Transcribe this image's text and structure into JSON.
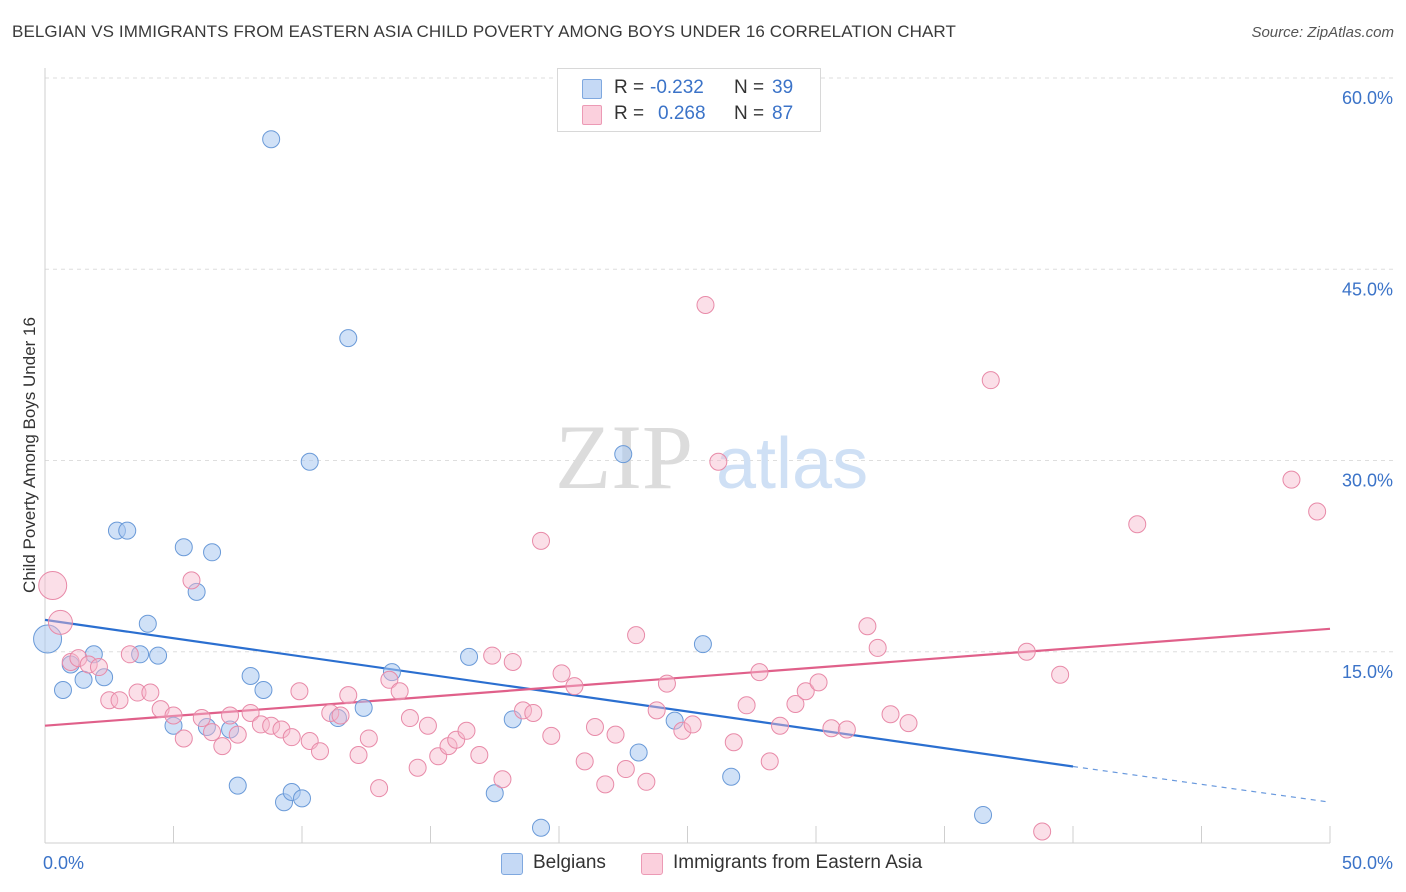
{
  "header": {
    "title": "BELGIAN VS IMMIGRANTS FROM EASTERN ASIA CHILD POVERTY AMONG BOYS UNDER 16 CORRELATION CHART",
    "source": "Source: ZipAtlas.com"
  },
  "watermark": {
    "zip": "ZIP",
    "atlas": "atlas"
  },
  "legend": {
    "rows": [
      {
        "r_label": "R =",
        "r_value": "-0.232",
        "n_label": "N =",
        "n_value": "39",
        "color": "#a9c8f0"
      },
      {
        "r_label": "R =",
        "r_value": "0.268",
        "n_label": "N =",
        "n_value": "87",
        "color": "#f7b9cd"
      }
    ]
  },
  "chart_data": {
    "type": "scatter",
    "ylabel": "Child Poverty Among Boys Under 16",
    "xlim": [
      0,
      50
    ],
    "ylim": [
      0,
      60
    ],
    "x_tick_labels": [
      "0.0%",
      "50.0%"
    ],
    "y_ticks": [
      15,
      30,
      45,
      60
    ],
    "y_tick_labels": [
      "15.0%",
      "30.0%",
      "45.0%",
      "60.0%"
    ],
    "grid": true,
    "legend_position": "bottom",
    "series": [
      {
        "name": "Belgians",
        "color": "#a9c8f0",
        "stroke": "#6a9ad8",
        "trend_color": "#2b6fd0",
        "trend": {
          "x0": 0,
          "y0": 17.5,
          "x1": 40,
          "y1": 6.0,
          "dash_to_x": 50,
          "dash_to_y": 3.2
        },
        "points": [
          [
            0.1,
            16.0
          ],
          [
            0.7,
            12.0
          ],
          [
            1.0,
            14.0
          ],
          [
            1.5,
            12.8
          ],
          [
            1.9,
            14.8
          ],
          [
            2.3,
            13.0
          ],
          [
            2.8,
            24.5
          ],
          [
            3.2,
            24.5
          ],
          [
            3.7,
            14.8
          ],
          [
            4.0,
            17.2
          ],
          [
            4.4,
            14.7
          ],
          [
            5.0,
            9.2
          ],
          [
            5.4,
            23.2
          ],
          [
            5.9,
            19.7
          ],
          [
            6.3,
            9.1
          ],
          [
            6.5,
            22.8
          ],
          [
            7.2,
            8.9
          ],
          [
            7.5,
            4.5
          ],
          [
            8.0,
            13.1
          ],
          [
            8.5,
            12.0
          ],
          [
            8.8,
            55.2
          ],
          [
            9.3,
            3.2
          ],
          [
            9.6,
            4.0
          ],
          [
            10.0,
            3.5
          ],
          [
            10.3,
            29.9
          ],
          [
            11.4,
            9.8
          ],
          [
            11.8,
            39.6
          ],
          [
            12.4,
            10.6
          ],
          [
            13.5,
            13.4
          ],
          [
            16.5,
            14.6
          ],
          [
            17.5,
            3.9
          ],
          [
            18.2,
            9.7
          ],
          [
            19.3,
            1.2
          ],
          [
            22.5,
            30.5
          ],
          [
            23.1,
            7.1
          ],
          [
            24.5,
            9.6
          ],
          [
            25.6,
            15.6
          ],
          [
            26.7,
            5.2
          ],
          [
            36.5,
            2.2
          ]
        ]
      },
      {
        "name": "Immigrants from Eastern Asia",
        "color": "#f7b9cd",
        "stroke": "#e88aa8",
        "trend_color": "#e0608a",
        "trend": {
          "x0": 0,
          "y0": 9.2,
          "x1": 50,
          "y1": 16.8
        },
        "points": [
          [
            0.3,
            20.2
          ],
          [
            0.6,
            17.3
          ],
          [
            1.0,
            14.2
          ],
          [
            1.3,
            14.5
          ],
          [
            1.7,
            14.0
          ],
          [
            2.1,
            13.8
          ],
          [
            2.5,
            11.2
          ],
          [
            2.9,
            11.2
          ],
          [
            3.3,
            14.8
          ],
          [
            3.6,
            11.8
          ],
          [
            4.1,
            11.8
          ],
          [
            4.5,
            10.5
          ],
          [
            5.0,
            10.0
          ],
          [
            5.4,
            8.2
          ],
          [
            5.7,
            20.6
          ],
          [
            6.1,
            9.8
          ],
          [
            6.5,
            8.7
          ],
          [
            6.9,
            7.6
          ],
          [
            7.2,
            10.0
          ],
          [
            7.5,
            8.5
          ],
          [
            8.0,
            10.2
          ],
          [
            8.4,
            9.3
          ],
          [
            8.8,
            9.2
          ],
          [
            9.2,
            8.9
          ],
          [
            9.6,
            8.3
          ],
          [
            9.9,
            11.9
          ],
          [
            10.3,
            8.0
          ],
          [
            10.7,
            7.2
          ],
          [
            11.1,
            10.2
          ],
          [
            11.5,
            10.0
          ],
          [
            11.8,
            11.6
          ],
          [
            12.2,
            6.9
          ],
          [
            12.6,
            8.2
          ],
          [
            13.0,
            4.3
          ],
          [
            13.4,
            12.8
          ],
          [
            13.8,
            11.9
          ],
          [
            14.2,
            9.8
          ],
          [
            14.5,
            5.9
          ],
          [
            14.9,
            9.2
          ],
          [
            15.3,
            6.8
          ],
          [
            15.7,
            7.6
          ],
          [
            16.0,
            8.1
          ],
          [
            16.4,
            8.8
          ],
          [
            16.9,
            6.9
          ],
          [
            17.4,
            14.7
          ],
          [
            17.8,
            5.0
          ],
          [
            18.2,
            14.2
          ],
          [
            18.6,
            10.4
          ],
          [
            19.0,
            10.2
          ],
          [
            19.3,
            23.7
          ],
          [
            19.7,
            8.4
          ],
          [
            20.1,
            13.3
          ],
          [
            20.6,
            12.3
          ],
          [
            21.0,
            6.4
          ],
          [
            21.4,
            9.1
          ],
          [
            21.8,
            4.6
          ],
          [
            22.2,
            8.5
          ],
          [
            22.6,
            5.8
          ],
          [
            23.0,
            16.3
          ],
          [
            23.4,
            4.8
          ],
          [
            23.8,
            10.4
          ],
          [
            24.2,
            12.5
          ],
          [
            24.8,
            8.8
          ],
          [
            25.2,
            9.3
          ],
          [
            25.7,
            42.2
          ],
          [
            26.2,
            29.9
          ],
          [
            26.8,
            7.9
          ],
          [
            27.3,
            10.8
          ],
          [
            27.8,
            13.4
          ],
          [
            28.2,
            6.4
          ],
          [
            28.6,
            9.2
          ],
          [
            29.2,
            10.9
          ],
          [
            29.6,
            11.9
          ],
          [
            30.1,
            12.6
          ],
          [
            30.6,
            9.0
          ],
          [
            31.2,
            8.9
          ],
          [
            32.0,
            17.0
          ],
          [
            32.4,
            15.3
          ],
          [
            32.9,
            10.1
          ],
          [
            33.6,
            9.4
          ],
          [
            36.8,
            36.3
          ],
          [
            38.2,
            15.0
          ],
          [
            38.8,
            0.9
          ],
          [
            39.5,
            13.2
          ],
          [
            42.5,
            25.0
          ],
          [
            48.5,
            28.5
          ],
          [
            49.5,
            26.0
          ]
        ]
      }
    ]
  }
}
